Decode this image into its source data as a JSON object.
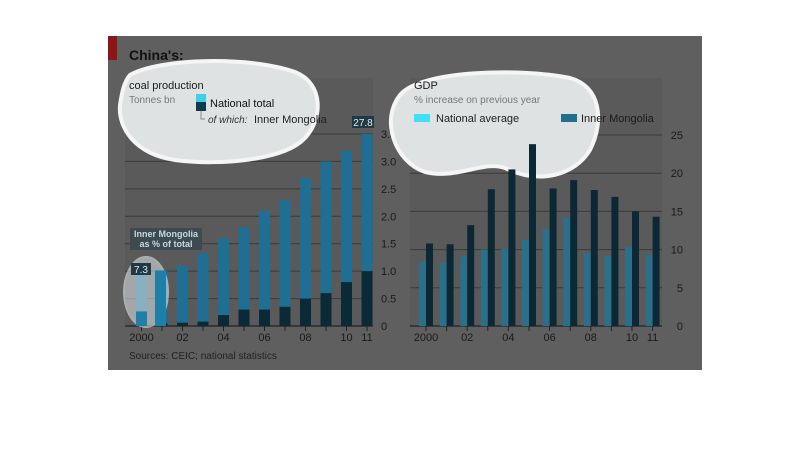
{
  "figure_title": "China's:",
  "source": "Sources: CEIC; national statistics",
  "chart_data": [
    {
      "type": "bar",
      "title": "coal production",
      "ylabel": "Tonnes bn",
      "categories": [
        "2000",
        "01",
        "02",
        "03",
        "04",
        "05",
        "06",
        "07",
        "08",
        "09",
        "10",
        "11"
      ],
      "x_tick_labels": [
        "2000",
        "02",
        "04",
        "06",
        "08",
        "10",
        "11"
      ],
      "y_ticks": [
        "0",
        "0.5",
        "1.0",
        "1.5",
        "2.0",
        "2.5",
        "3.0",
        "3.5"
      ],
      "ylim": [
        0,
        3.6
      ],
      "series": [
        {
          "name": "National total",
          "values": [
            1.0,
            1.0,
            1.1,
            1.33,
            1.6,
            1.8,
            2.1,
            2.3,
            2.7,
            3.0,
            3.2,
            3.5
          ],
          "color": "#1e6f93"
        },
        {
          "name": "Inner Mongolia",
          "values": [
            0.05,
            0.05,
            0.06,
            0.08,
            0.2,
            0.3,
            0.3,
            0.35,
            0.5,
            0.6,
            0.8,
            1.0
          ],
          "color": "#0b2a37"
        }
      ],
      "legend": {
        "national_total": "National total",
        "of_which": "of which:",
        "inner_mongolia": "Inner Mongolia"
      },
      "annotations": {
        "end_value": "27.8",
        "inset_title_line1": "Inner Mongolia",
        "inset_title_line2": "as % of total",
        "inset_value": "7.3"
      },
      "inset": {
        "values": [
          7.3,
          27.8
        ],
        "ylim": [
          0,
          28
        ]
      },
      "grid": true,
      "legend_placement": "top-right"
    },
    {
      "type": "bar",
      "title": "GDP",
      "ylabel": "% increase on previous year",
      "categories": [
        "2000",
        "01",
        "02",
        "03",
        "04",
        "05",
        "06",
        "07",
        "08",
        "09",
        "10",
        "11"
      ],
      "x_tick_labels": [
        "2000",
        "02",
        "04",
        "06",
        "08",
        "10",
        "11"
      ],
      "y_ticks": [
        "0",
        "5",
        "10",
        "15",
        "20",
        "25"
      ],
      "ylim": [
        0,
        26
      ],
      "series": [
        {
          "name": "National average",
          "values": [
            8.4,
            8.3,
            9.1,
            10.0,
            10.1,
            11.3,
            12.7,
            14.2,
            9.6,
            9.2,
            10.4,
            9.3
          ],
          "color": "#2c6f8a"
        },
        {
          "name": "Inner Mongolia",
          "values": [
            10.8,
            10.7,
            13.2,
            17.9,
            20.5,
            23.8,
            18.0,
            19.1,
            17.8,
            16.9,
            15.0,
            14.3
          ],
          "color": "#0d2835"
        }
      ],
      "grid": true,
      "legend_placement": "top"
    }
  ]
}
